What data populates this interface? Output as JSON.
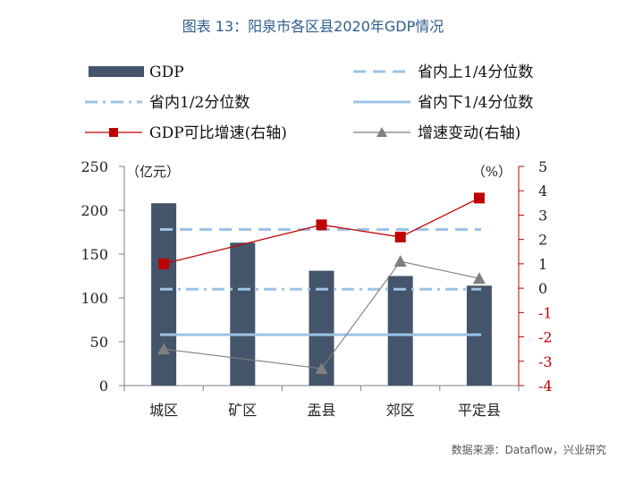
{
  "header": {
    "title": "图表 13：阳泉市各区县2020年GDP情况"
  },
  "footer": {
    "source": "数据来源：Dataflow，兴业研究"
  },
  "chart_data": {
    "type": "bar",
    "categories": [
      "城区",
      "矿区",
      "盂县",
      "郊区",
      "平定县"
    ],
    "left_axis": {
      "unit": "（亿元）",
      "ylim": [
        0,
        250
      ],
      "ticks": [
        "0",
        "50",
        "100",
        "150",
        "200",
        "250"
      ]
    },
    "right_axis": {
      "unit": "（%）",
      "ylim": [
        -4,
        5
      ],
      "ticks": [
        "-4",
        "-3",
        "-2",
        "-1",
        "0",
        "1",
        "2",
        "3",
        "4",
        "5"
      ]
    },
    "series": [
      {
        "name": "GDP",
        "type": "bar",
        "axis": "left",
        "color": "#44546a",
        "values": [
          208,
          163,
          131,
          125,
          114
        ]
      },
      {
        "name": "省内上1/4分位数",
        "type": "hline",
        "axis": "left",
        "style": "dashed",
        "color": "#9dc3e6",
        "value": 178
      },
      {
        "name": "省内1/2分位数",
        "type": "hline",
        "axis": "left",
        "style": "dashdot",
        "color": "#9dc3e6",
        "value": 110
      },
      {
        "name": "省内下1/4分位数",
        "type": "hline",
        "axis": "left",
        "style": "solid",
        "color": "#9dc3e6",
        "value": 58
      },
      {
        "name": "GDP可比增速(右轴)",
        "type": "line",
        "axis": "right",
        "marker": "square",
        "color": "#c00000",
        "values": [
          1.0,
          null,
          2.6,
          2.1,
          3.7
        ]
      },
      {
        "name": "增速变动(右轴)",
        "type": "line",
        "axis": "right",
        "marker": "triangle",
        "color": "#7f7f7f",
        "values": [
          -2.5,
          null,
          -3.3,
          1.1,
          0.4
        ]
      }
    ]
  }
}
